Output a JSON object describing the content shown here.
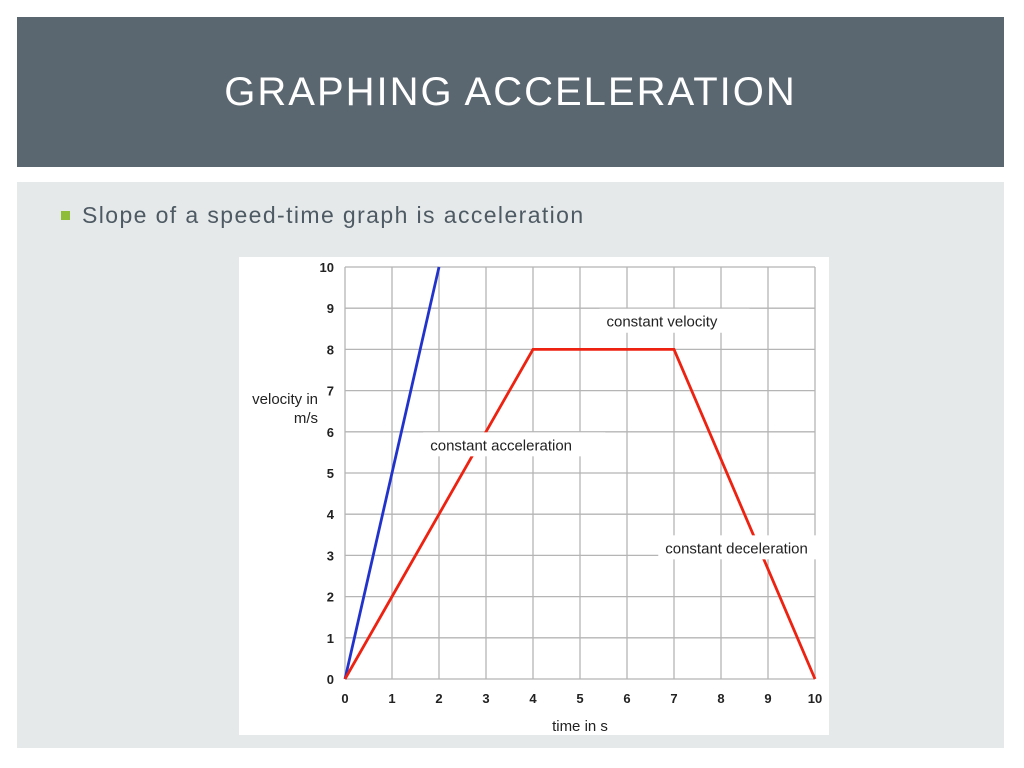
{
  "slide": {
    "title": "GRAPHING ACCELERATION",
    "bullet": "Slope of a speed-time graph is acceleration"
  },
  "colors": {
    "title_band": "#5b6770",
    "content_bg": "#e6e9ea",
    "bullet_marker": "#8fbd3a",
    "blue_series": "#2233cc",
    "red_series": "#ee2211",
    "grid": "#b5b5b5"
  },
  "chart_data": {
    "type": "line",
    "xlabel": "time in s",
    "ylabel_line1": "velocity in",
    "ylabel_line2": "m/s",
    "xlim": [
      0,
      10
    ],
    "ylim": [
      0,
      10
    ],
    "x_ticks": [
      0,
      1,
      2,
      3,
      4,
      5,
      6,
      7,
      8,
      9,
      10
    ],
    "y_ticks": [
      0,
      1,
      2,
      3,
      4,
      5,
      6,
      7,
      8,
      9,
      10
    ],
    "grid": true,
    "series": [
      {
        "color": "#2233cc",
        "points": [
          [
            0,
            0
          ],
          [
            2,
            10
          ]
        ]
      },
      {
        "color": "#ee2211",
        "points": [
          [
            0,
            0
          ],
          [
            4,
            8
          ],
          [
            7,
            8
          ],
          [
            10,
            0
          ]
        ]
      }
    ],
    "annotations": [
      {
        "text": "constant velocity",
        "x": 5.5,
        "y": 8.55
      },
      {
        "text": "constant acceleration",
        "x": 1.75,
        "y": 5.55
      },
      {
        "text": "constant deceleration",
        "x": 6.75,
        "y": 3.05
      }
    ]
  }
}
